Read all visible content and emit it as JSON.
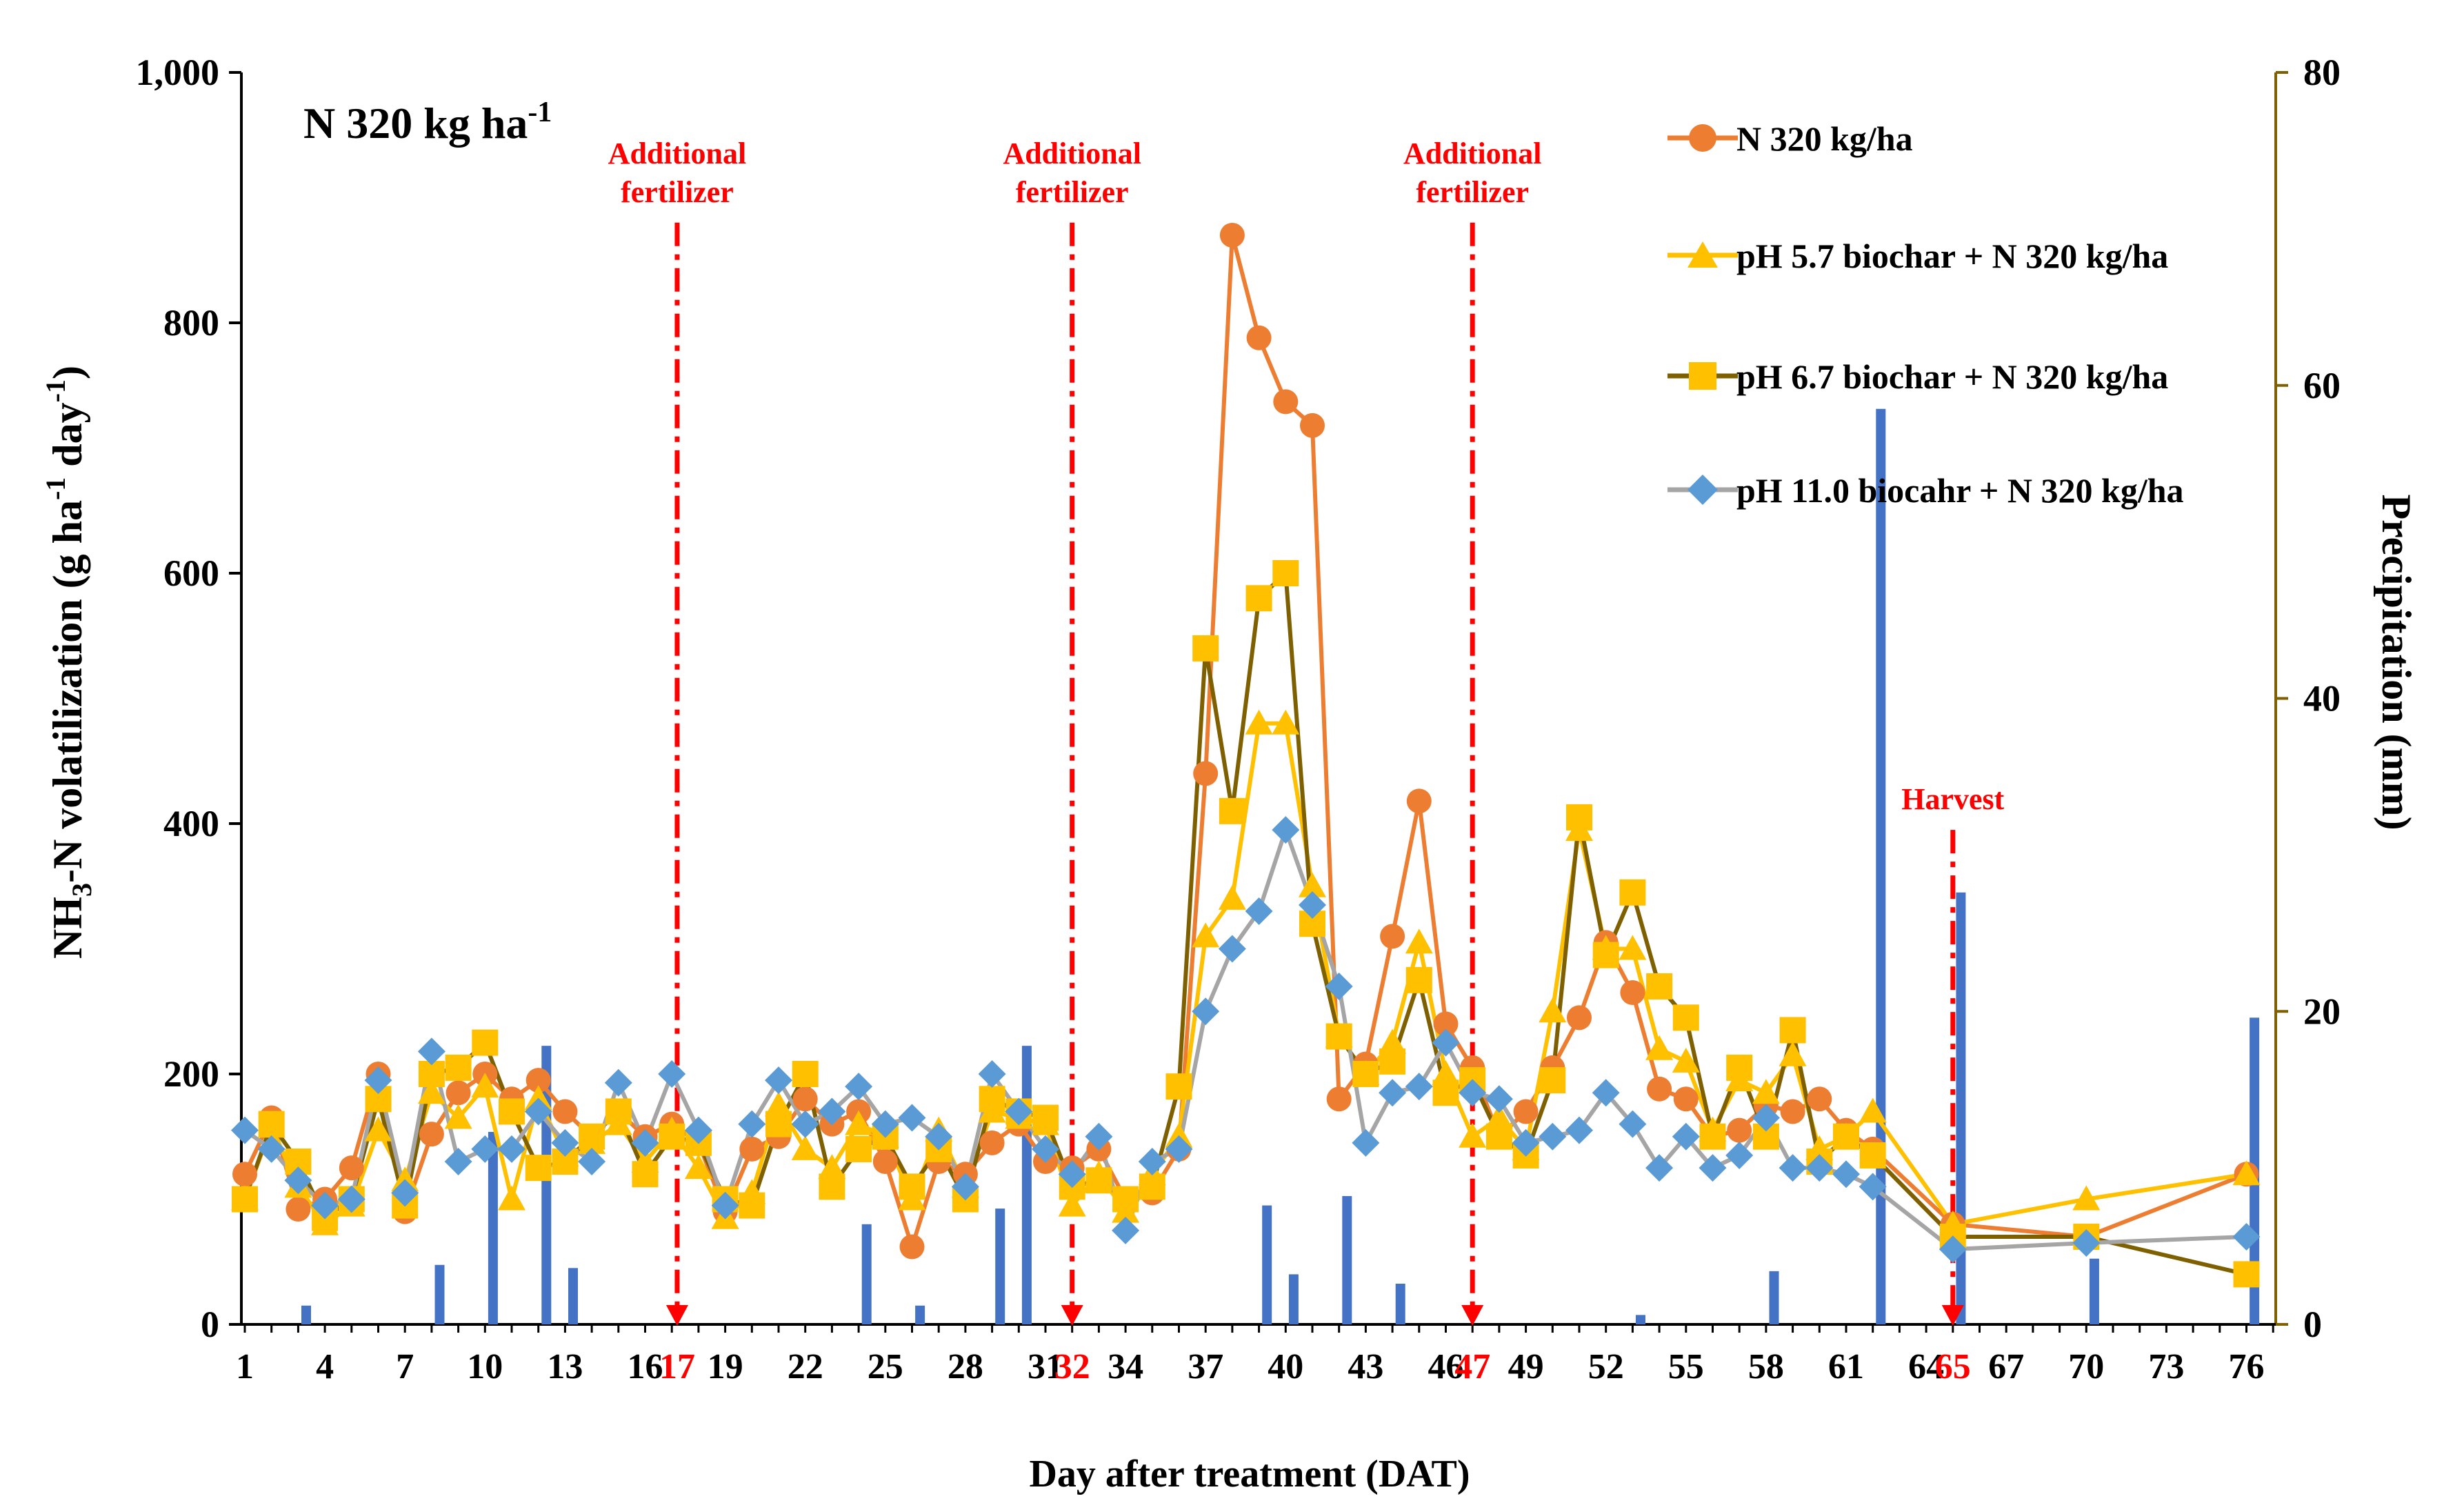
{
  "chart_data": {
    "type": "line",
    "title": "N 320 kg ha",
    "title_superscript": "-1",
    "xlabel": "Day after treatment (DAT)",
    "ylabel_parts": [
      "NH",
      "3",
      "-N volatilization (g ha",
      "-1",
      " day",
      "-1",
      ")"
    ],
    "y2label": "Precipitation (mm)",
    "xlim": [
      1,
      77
    ],
    "ylim": [
      0,
      1000
    ],
    "y2lim": [
      0,
      80
    ],
    "y_ticks": [
      0,
      200,
      400,
      600,
      800,
      1000
    ],
    "y_tick_labels": [
      "0",
      "200",
      "400",
      "600",
      "800",
      "1,000"
    ],
    "y2_ticks": [
      0,
      20,
      40,
      60,
      80
    ],
    "y2_tick_labels": [
      "0",
      "20",
      "40",
      "60",
      "80"
    ],
    "x_tick_labels": [
      {
        "day": 1,
        "label": "1"
      },
      {
        "day": 4,
        "label": "4"
      },
      {
        "day": 7,
        "label": "7"
      },
      {
        "day": 10,
        "label": "10"
      },
      {
        "day": 13,
        "label": "13"
      },
      {
        "day": 16,
        "label": "16"
      },
      {
        "day": 19,
        "label": "19"
      },
      {
        "day": 22,
        "label": "22"
      },
      {
        "day": 25,
        "label": "25"
      },
      {
        "day": 28,
        "label": "28"
      },
      {
        "day": 31,
        "label": "31"
      },
      {
        "day": 34,
        "label": "34"
      },
      {
        "day": 37,
        "label": "37"
      },
      {
        "day": 40,
        "label": "40"
      },
      {
        "day": 43,
        "label": "43"
      },
      {
        "day": 46,
        "label": "46"
      },
      {
        "day": 49,
        "label": "49"
      },
      {
        "day": 52,
        "label": "52"
      },
      {
        "day": 55,
        "label": "55"
      },
      {
        "day": 58,
        "label": "58"
      },
      {
        "day": 61,
        "label": "61"
      },
      {
        "day": 64,
        "label": "64"
      },
      {
        "day": 67,
        "label": "67"
      },
      {
        "day": 70,
        "label": "70"
      },
      {
        "day": 73,
        "label": "73"
      },
      {
        "day": 76,
        "label": "76"
      }
    ],
    "highlight_ticks": [
      {
        "day": 17.2,
        "label": "17"
      },
      {
        "day": 32.0,
        "label": "32"
      },
      {
        "day": 47.0,
        "label": "47"
      },
      {
        "day": 65.0,
        "label": "65"
      }
    ],
    "events": [
      {
        "day": 17.2,
        "lines": [
          "Additional",
          "fertilizer"
        ],
        "from": 880,
        "to": 0
      },
      {
        "day": 32.0,
        "lines": [
          "Additional",
          "fertilizer"
        ],
        "from": 880,
        "to": 0
      },
      {
        "day": 47.0,
        "lines": [
          "Additional",
          "fertilizer"
        ],
        "from": 880,
        "to": 0
      },
      {
        "day": 65.0,
        "lines": [
          "Harvest"
        ],
        "from": 395,
        "to": 0
      }
    ],
    "precipitation": {
      "name": "Precipitation",
      "color": "#4472C4",
      "days": [
        3.3,
        8.3,
        10.3,
        12.3,
        13.3,
        24.3,
        26.3,
        29.3,
        30.3,
        39.3,
        40.3,
        42.3,
        44.3,
        53.3,
        58.3,
        62.3,
        65.3,
        70.3,
        76.3
      ],
      "values": [
        1.2,
        3.8,
        12.3,
        17.8,
        3.6,
        6.4,
        1.2,
        7.4,
        17.8,
        7.6,
        3.2,
        8.2,
        2.6,
        0.6,
        3.4,
        58.5,
        27.6,
        4.2,
        19.6
      ]
    },
    "x": [
      1,
      2,
      3,
      4,
      5,
      6,
      7,
      8,
      9,
      10,
      11,
      12,
      13,
      14,
      15,
      16,
      17,
      18,
      19,
      20,
      21,
      22,
      23,
      24,
      25,
      26,
      27,
      28,
      29,
      30,
      31,
      32,
      33,
      34,
      35,
      36,
      37,
      38,
      39,
      40,
      41,
      42,
      43,
      44,
      45,
      46,
      47,
      48,
      49,
      50,
      51,
      52,
      53,
      54,
      55,
      56,
      57,
      58,
      59,
      60,
      61,
      62,
      65,
      70,
      76
    ],
    "series": [
      {
        "name": "N 320 kg/ha",
        "color": "#ED7D31",
        "line_color": "#ED7D31",
        "marker": "circle",
        "values": [
          120,
          165,
          92,
          100,
          125,
          200,
          90,
          152,
          185,
          200,
          180,
          195,
          170,
          150,
          170,
          150,
          160,
          145,
          90,
          140,
          150,
          180,
          160,
          170,
          130,
          62,
          130,
          120,
          145,
          160,
          130,
          125,
          140,
          100,
          105,
          140,
          440,
          870,
          788,
          737,
          718,
          180,
          208,
          310,
          418,
          240,
          205,
          150,
          170,
          205,
          245,
          305,
          265,
          188,
          180,
          150,
          155,
          175,
          170,
          180,
          155,
          140,
          80,
          70,
          120
        ]
      },
      {
        "name": "pH 5.7 biochar + N 320 kg/ha",
        "color": "#FFC000",
        "line_color": "#FFC000",
        "marker": "triangle",
        "values": [
          100,
          158,
          110,
          80,
          95,
          155,
          115,
          185,
          165,
          190,
          100,
          180,
          135,
          145,
          160,
          130,
          155,
          125,
          85,
          105,
          175,
          140,
          125,
          160,
          150,
          100,
          155,
          110,
          170,
          165,
          160,
          95,
          120,
          90,
          120,
          150,
          310,
          340,
          480,
          480,
          350,
          230,
          200,
          225,
          305,
          200,
          150,
          165,
          140,
          250,
          395,
          300,
          300,
          220,
          210,
          155,
          195,
          185,
          215,
          140,
          150,
          170,
          80,
          100,
          120
        ]
      },
      {
        "name": "pH 6.7 biochar + N 320 kg/ha",
        "color": "#FFC000",
        "line_color": "#7F6000",
        "marker": "square",
        "values": [
          100,
          160,
          130,
          85,
          100,
          180,
          95,
          200,
          205,
          225,
          170,
          125,
          130,
          150,
          170,
          120,
          150,
          145,
          100,
          95,
          160,
          200,
          110,
          140,
          150,
          110,
          140,
          100,
          180,
          170,
          165,
          110,
          115,
          100,
          110,
          190,
          540,
          410,
          580,
          600,
          320,
          230,
          200,
          210,
          275,
          185,
          195,
          150,
          135,
          195,
          405,
          295,
          345,
          270,
          245,
          150,
          205,
          150,
          235,
          130,
          150,
          135,
          70,
          70,
          40
        ]
      },
      {
        "name": "pH 11.0 biocahr + N 320 kg/ha",
        "color": "#5B9BD5",
        "line_color": "#A5A5A5",
        "marker": "diamond",
        "values": [
          155,
          140,
          115,
          95,
          100,
          195,
          105,
          218,
          130,
          140,
          140,
          170,
          145,
          130,
          193,
          145,
          200,
          155,
          95,
          160,
          195,
          160,
          170,
          190,
          160,
          165,
          150,
          110,
          200,
          170,
          140,
          120,
          150,
          75,
          130,
          140,
          250,
          300,
          330,
          395,
          335,
          270,
          145,
          185,
          190,
          225,
          185,
          180,
          145,
          150,
          155,
          185,
          160,
          125,
          150,
          125,
          135,
          165,
          125,
          125,
          120,
          110,
          60,
          65,
          70
        ]
      }
    ]
  }
}
